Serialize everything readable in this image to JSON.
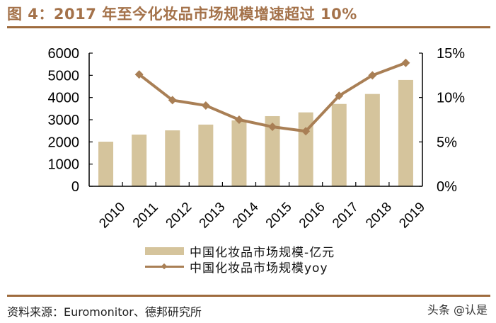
{
  "header": {
    "title": "图 4：2017 年至今化妆品市场规模增速超过 10%"
  },
  "footer": {
    "source": "资料来源：Euromonitor、德邦研究所",
    "watermark": "头条 @认是"
  },
  "legend": {
    "bar_label": "中国化妆品市场规模-亿元",
    "line_label": "中国化妆品市场规模yoy"
  },
  "colors": {
    "bar": "#D5C49C",
    "line": "#A97F55",
    "title": "#A4724A",
    "rule": "#9E6B3D"
  },
  "chart_data": {
    "type": "bar",
    "title": "2017 年至今化妆品市场规模增速超过 10%",
    "categories": [
      "2010",
      "2011",
      "2012",
      "2013",
      "2014",
      "2015",
      "2016",
      "2017",
      "2018",
      "2019"
    ],
    "series": [
      {
        "name": "中国化妆品市场规模-亿元",
        "type": "bar",
        "axis": "left",
        "values": [
          2010,
          2330,
          2520,
          2780,
          2970,
          3160,
          3330,
          3710,
          4160,
          4790
        ]
      },
      {
        "name": "中国化妆品市场规模yoy",
        "type": "line",
        "axis": "right",
        "unit": "%",
        "values": [
          null,
          12.6,
          9.7,
          9.1,
          7.5,
          6.7,
          6.2,
          10.2,
          12.5,
          13.9
        ]
      }
    ],
    "xlabel": "",
    "ylabel": "",
    "ylim": [
      0,
      6000
    ],
    "yticks": [
      "0",
      "1000",
      "2000",
      "3000",
      "4000",
      "5000",
      "6000"
    ],
    "y2lim": [
      0,
      15
    ],
    "y2ticks": [
      "0%",
      "5%",
      "10%",
      "15%"
    ],
    "grid": false,
    "legend_position": "bottom"
  }
}
